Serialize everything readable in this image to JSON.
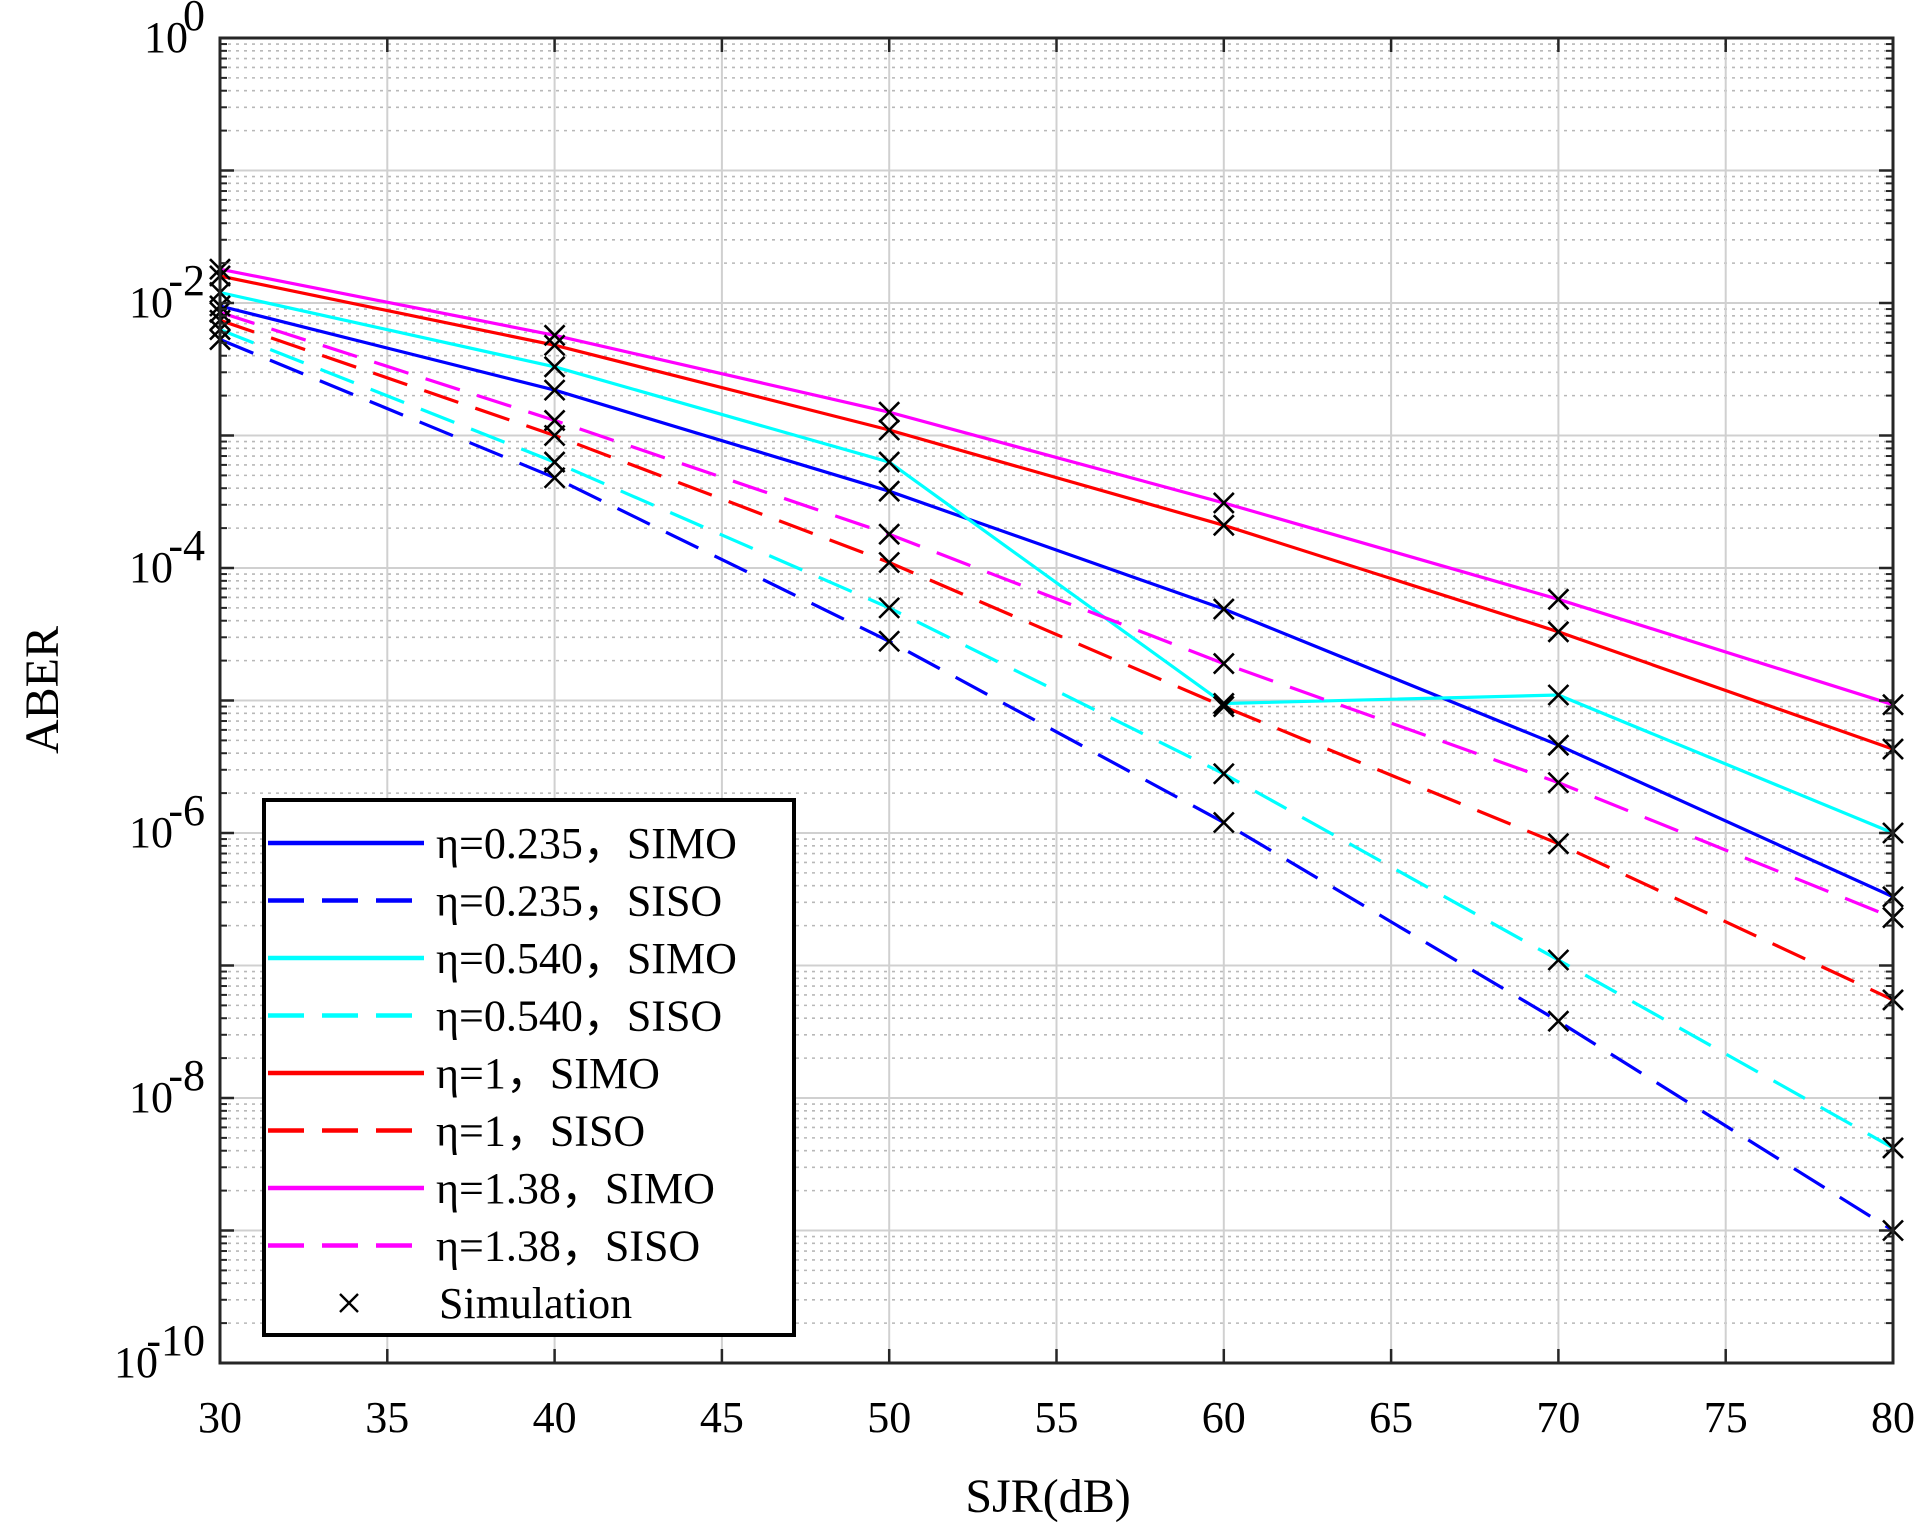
{
  "chart_data": {
    "type": "line",
    "xlabel": "SJR(dB)",
    "ylabel": "ABER",
    "xlim": [
      30,
      80
    ],
    "ylim": [
      1e-10,
      1
    ],
    "yscale": "log",
    "grid": true,
    "minor_grid": true,
    "legend_position": "bottom-left",
    "x_ticks": [
      "30",
      "35",
      "40",
      "45",
      "50",
      "55",
      "60",
      "65",
      "70",
      "75",
      "80"
    ],
    "y_ticks": [
      {
        "base": "10",
        "exp": "0",
        "value": 1
      },
      {
        "base": "10",
        "exp": "-2",
        "value": 0.01
      },
      {
        "base": "10",
        "exp": "-4",
        "value": 0.0001
      },
      {
        "base": "10",
        "exp": "-6",
        "value": 1e-06
      },
      {
        "base": "10",
        "exp": "-8",
        "value": 1e-08
      },
      {
        "base": "10",
        "exp": "-10",
        "value": 1e-10
      }
    ],
    "series": [
      {
        "name": "η=0.235，SIMO",
        "color": "#0000ff",
        "dash": "solid",
        "x": [
          30,
          40,
          50,
          60,
          70,
          80
        ],
        "y": [
          0.0095,
          0.0022,
          0.00038,
          4.9e-05,
          4.6e-06,
          3.3e-07
        ]
      },
      {
        "name": "η=0.235，SISO",
        "color": "#0000ff",
        "dash": "dashed",
        "x": [
          30,
          40,
          50,
          60,
          70,
          80
        ],
        "y": [
          0.0053,
          0.00048,
          2.8e-05,
          1.2e-06,
          3.8e-08,
          1e-09
        ]
      },
      {
        "name": "η=0.540，SIMO",
        "color": "#00ffff",
        "dash": "solid",
        "x": [
          30,
          40,
          50,
          60,
          70,
          80
        ],
        "y": [
          0.012,
          0.0033,
          0.00063,
          9.5e-06,
          1.1e-05,
          1e-06
        ]
      },
      {
        "name": "η=0.540，SISO",
        "color": "#00ffff",
        "dash": "dashed",
        "x": [
          30,
          40,
          50,
          60,
          70,
          80
        ],
        "y": [
          0.0063,
          0.00063,
          5e-05,
          2.8e-06,
          1.1e-07,
          4.2e-09
        ]
      },
      {
        "name": "η=1，SIMO",
        "color": "#ff0000",
        "dash": "solid",
        "x": [
          30,
          40,
          50,
          60,
          70,
          80
        ],
        "y": [
          0.016,
          0.0048,
          0.0011,
          0.00021,
          3.3e-05,
          4.3e-06
        ]
      },
      {
        "name": "η=1，SISO",
        "color": "#ff0000",
        "dash": "dashed",
        "x": [
          30,
          40,
          50,
          60,
          70,
          80
        ],
        "y": [
          0.0074,
          0.001,
          0.00011,
          9e-06,
          8.3e-07,
          5.5e-08
        ]
      },
      {
        "name": "η=1.38，SIMO",
        "color": "#ff00ff",
        "dash": "solid",
        "x": [
          30,
          40,
          50,
          60,
          70,
          80
        ],
        "y": [
          0.018,
          0.0057,
          0.0015,
          0.00031,
          5.8e-05,
          9.3e-06
        ]
      },
      {
        "name": "η=1.38，SISO",
        "color": "#ff00ff",
        "dash": "dashed",
        "x": [
          30,
          40,
          50,
          60,
          70,
          80
        ],
        "y": [
          0.0085,
          0.0013,
          0.00018,
          1.9e-05,
          2.4e-06,
          2.3e-07
        ]
      }
    ],
    "simulation": {
      "name": "Simulation",
      "marker": "x",
      "color": "#000000",
      "note_source": "markers at every series point"
    }
  }
}
